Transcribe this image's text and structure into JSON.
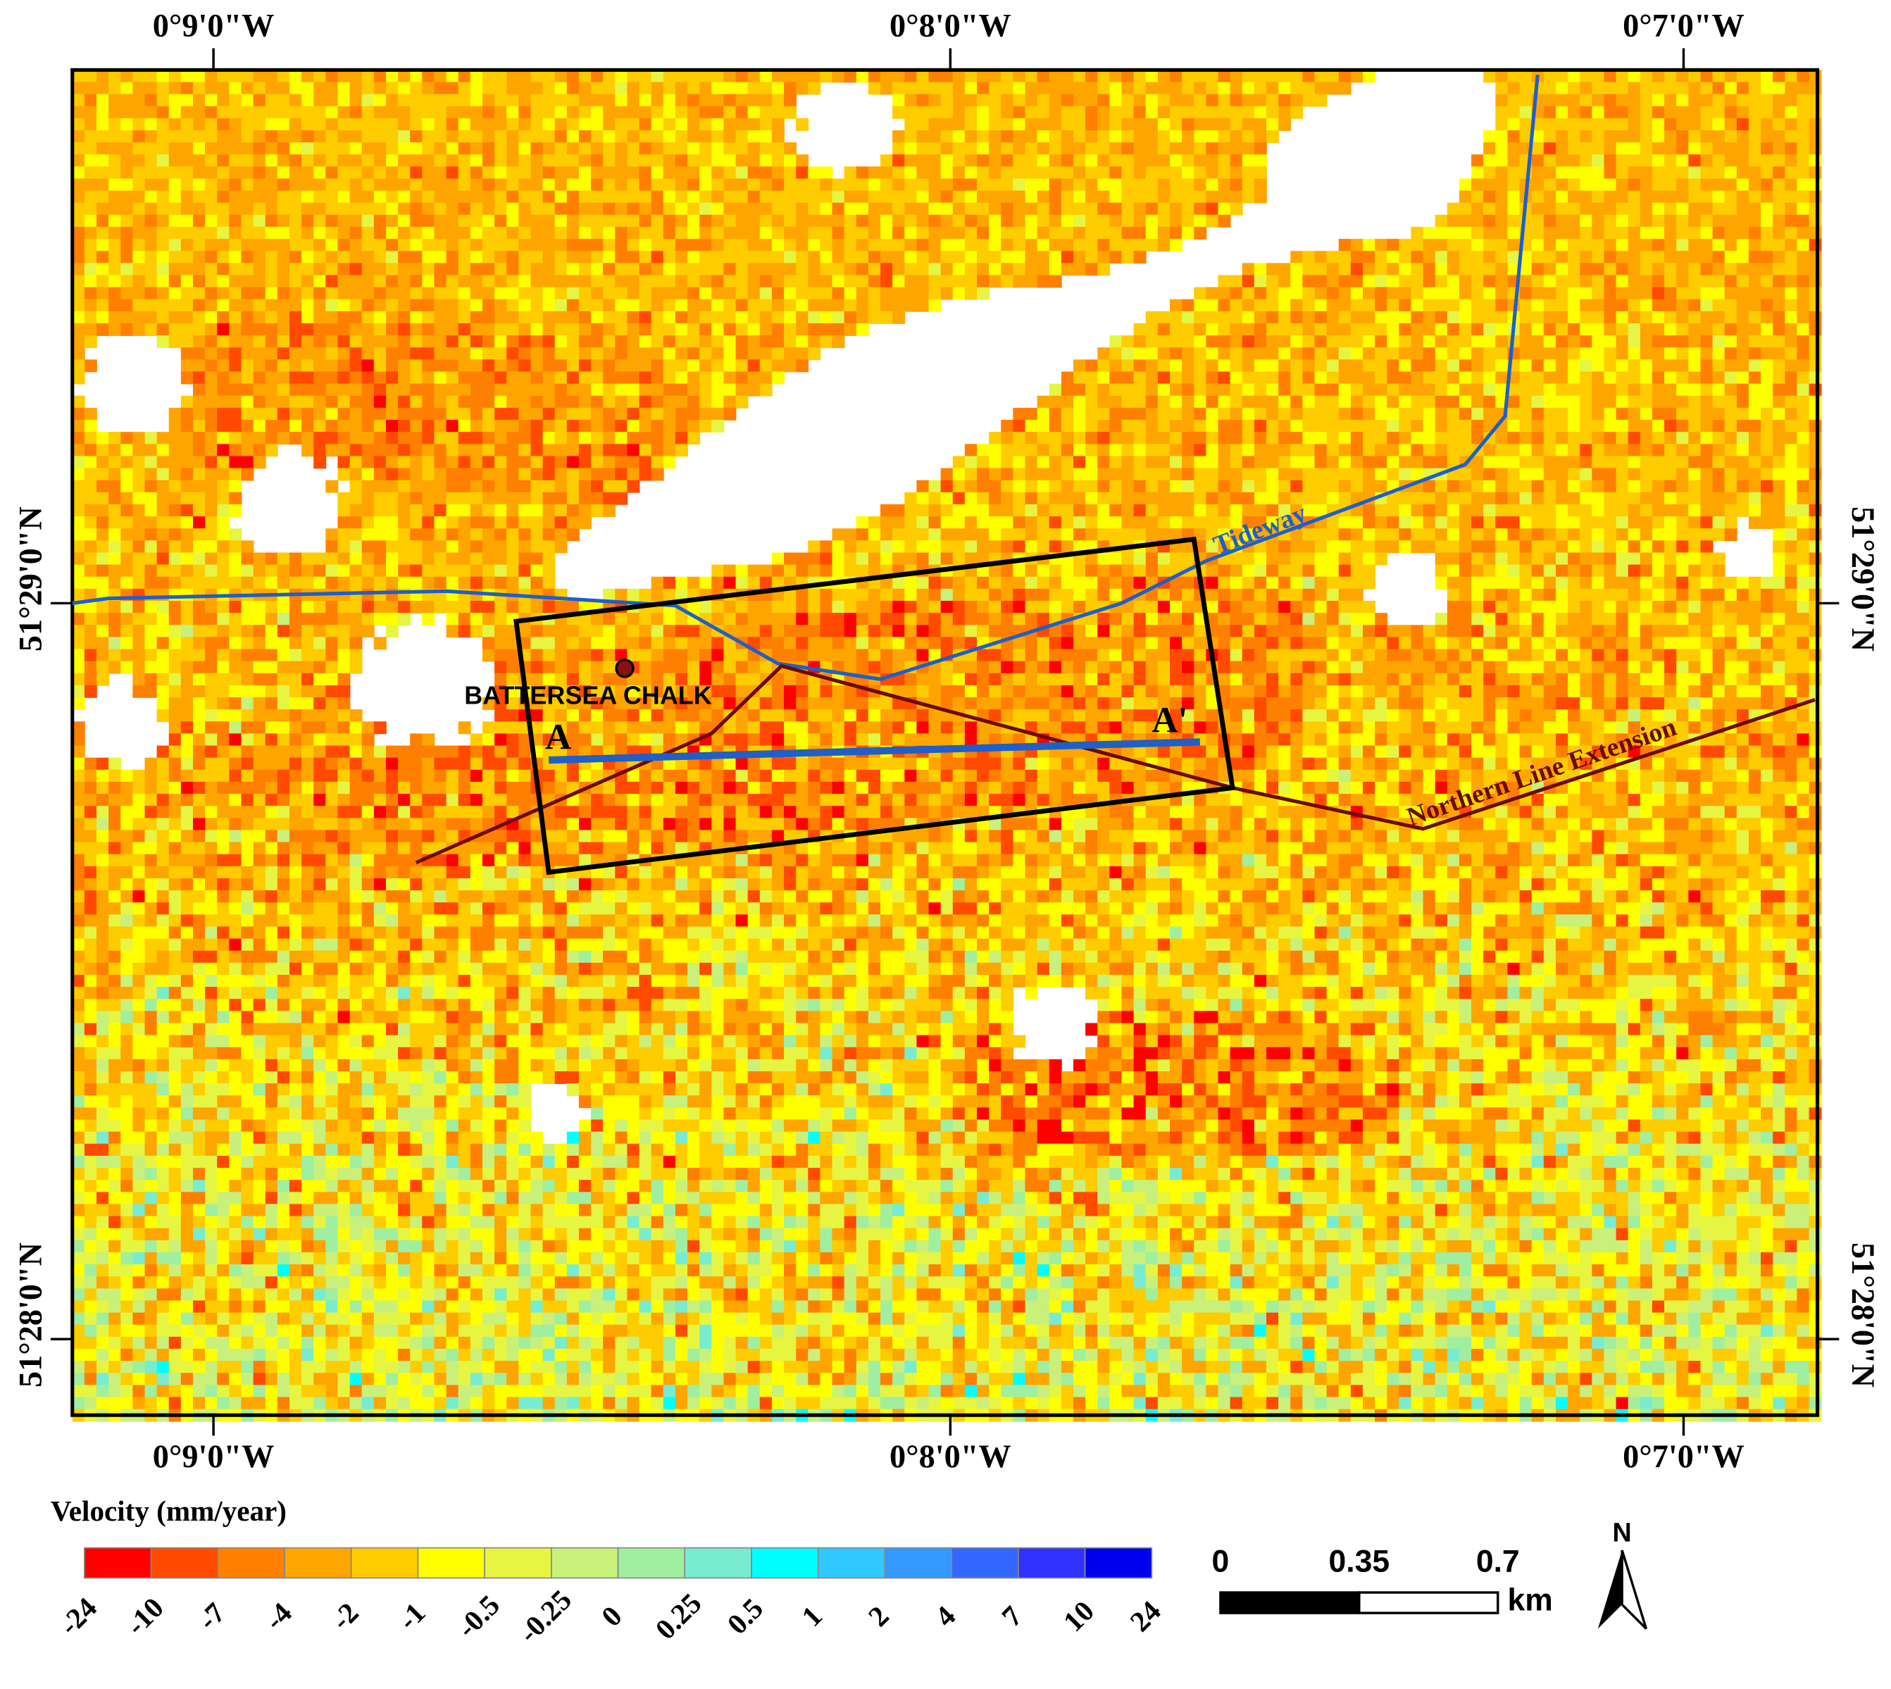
{
  "map": {
    "lon_labels": [
      "0°9'0\"W",
      "0°8'0\"W",
      "0°7'0\"W"
    ],
    "lat_labels": [
      "51°29'0\"N",
      "51°28'0\"N"
    ],
    "features": {
      "tideway": "Tideway",
      "northern_line": "Northern Line Extension",
      "site": "BATTERSEA CHALK",
      "section_start": "A",
      "section_end": "A'"
    },
    "legend": {
      "title": "Velocity (mm/year)",
      "breaks": [
        -24,
        -10,
        -7,
        -4,
        -2,
        -1,
        -0.5,
        -0.25,
        0,
        0.25,
        0.5,
        1,
        2,
        4,
        7,
        10,
        24
      ],
      "colors": [
        "#ff0000",
        "#ff4a00",
        "#ff8000",
        "#ffa500",
        "#ffcc00",
        "#ffff00",
        "#e6f542",
        "#c8f07a",
        "#a0eea0",
        "#78ecd0",
        "#00ffff",
        "#30c8ff",
        "#3399ff",
        "#3366ff",
        "#3030ff",
        "#0000ee"
      ]
    },
    "scale_bar": {
      "labels": [
        "0",
        "0.35",
        "0.7"
      ],
      "unit": "km"
    },
    "north": "N"
  }
}
